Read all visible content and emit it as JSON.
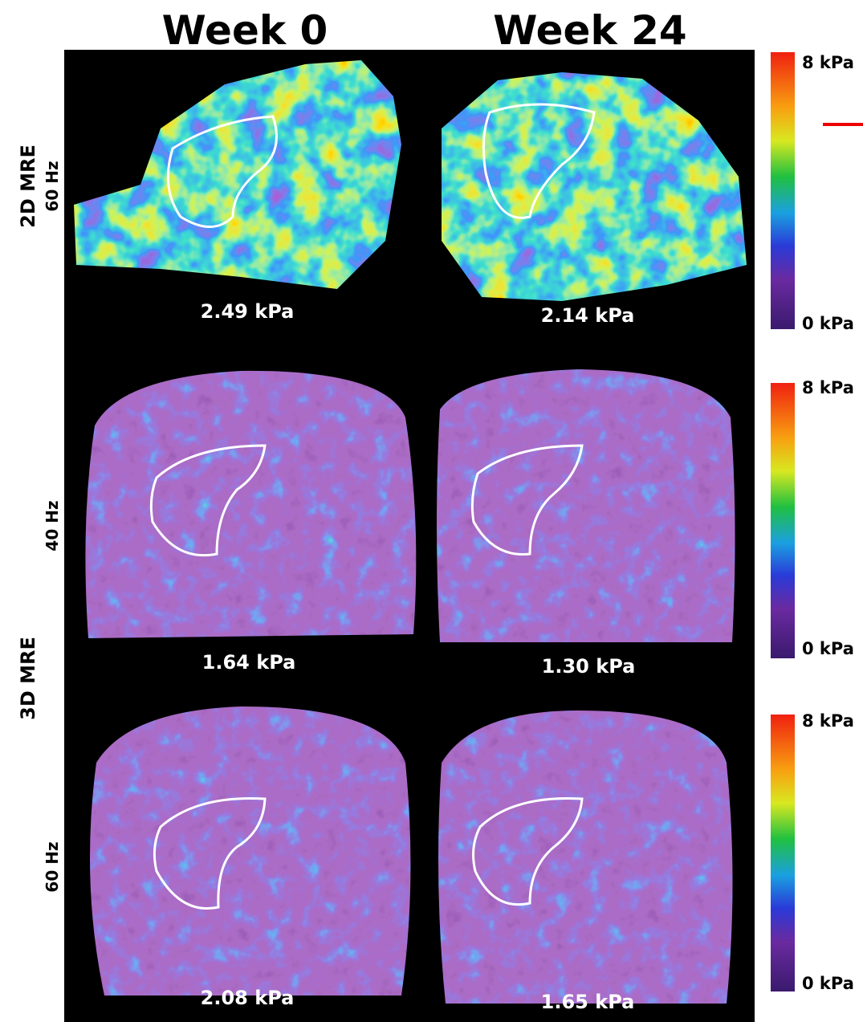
{
  "headers": [
    "Week 0",
    "Week 24"
  ],
  "row_groups": [
    {
      "label": "2D MRE",
      "rows": [
        "60 Hz"
      ]
    },
    {
      "label": "3D MRE",
      "rows": [
        "40 Hz",
        "60 Hz"
      ]
    }
  ],
  "panels": [
    [
      "2.49 kPa",
      "2.14 kPa"
    ],
    [
      "1.64 kPa",
      "1.30 kPa"
    ],
    [
      "2.08 kPa",
      "1.65 kPa"
    ]
  ],
  "colorbars": [
    {
      "max": "8 kPa",
      "min": "0 kPa"
    },
    {
      "max": "8 kPa",
      "min": "0 kPa"
    },
    {
      "max": "8 kPa",
      "min": "0 kPa"
    }
  ]
}
